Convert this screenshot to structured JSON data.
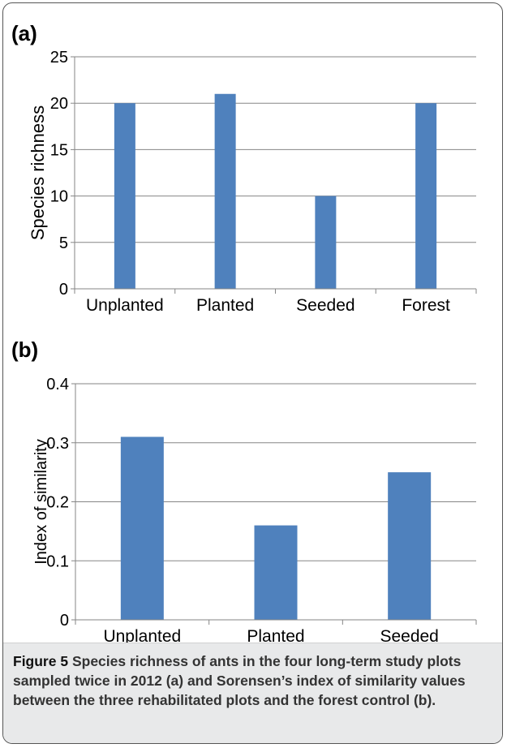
{
  "chart_data": [
    {
      "type": "bar",
      "panel_label": "(a)",
      "title": "",
      "xlabel": "",
      "ylabel": "Species richness",
      "categories": [
        "Unplanted",
        "Planted",
        "Seeded",
        "Forest"
      ],
      "values": [
        20,
        21,
        10,
        20
      ],
      "ylim": [
        0,
        25
      ],
      "yticks": [
        "0",
        "5",
        "10",
        "15",
        "20",
        "25"
      ],
      "grid": true,
      "legend": "none",
      "bar_color": "#4f81bd"
    },
    {
      "type": "bar",
      "panel_label": "(b)",
      "title": "",
      "xlabel": "",
      "ylabel": "Index of similarity",
      "categories": [
        "Unplanted",
        "Planted",
        "Seeded"
      ],
      "values": [
        0.31,
        0.16,
        0.25
      ],
      "ylim": [
        0,
        0.4
      ],
      "yticks": [
        "0",
        "0.1",
        "0.2",
        "0.3",
        "0.4"
      ],
      "grid": true,
      "legend": "none",
      "bar_color": "#4f81bd"
    }
  ],
  "caption": {
    "label": "Figure 5",
    "text": "Species richness of ants in the four long-term study plots sampled twice in 2012 (a) and Sorensen’s index of similarity values between the three rehabilitated plots and the forest control (b)."
  }
}
